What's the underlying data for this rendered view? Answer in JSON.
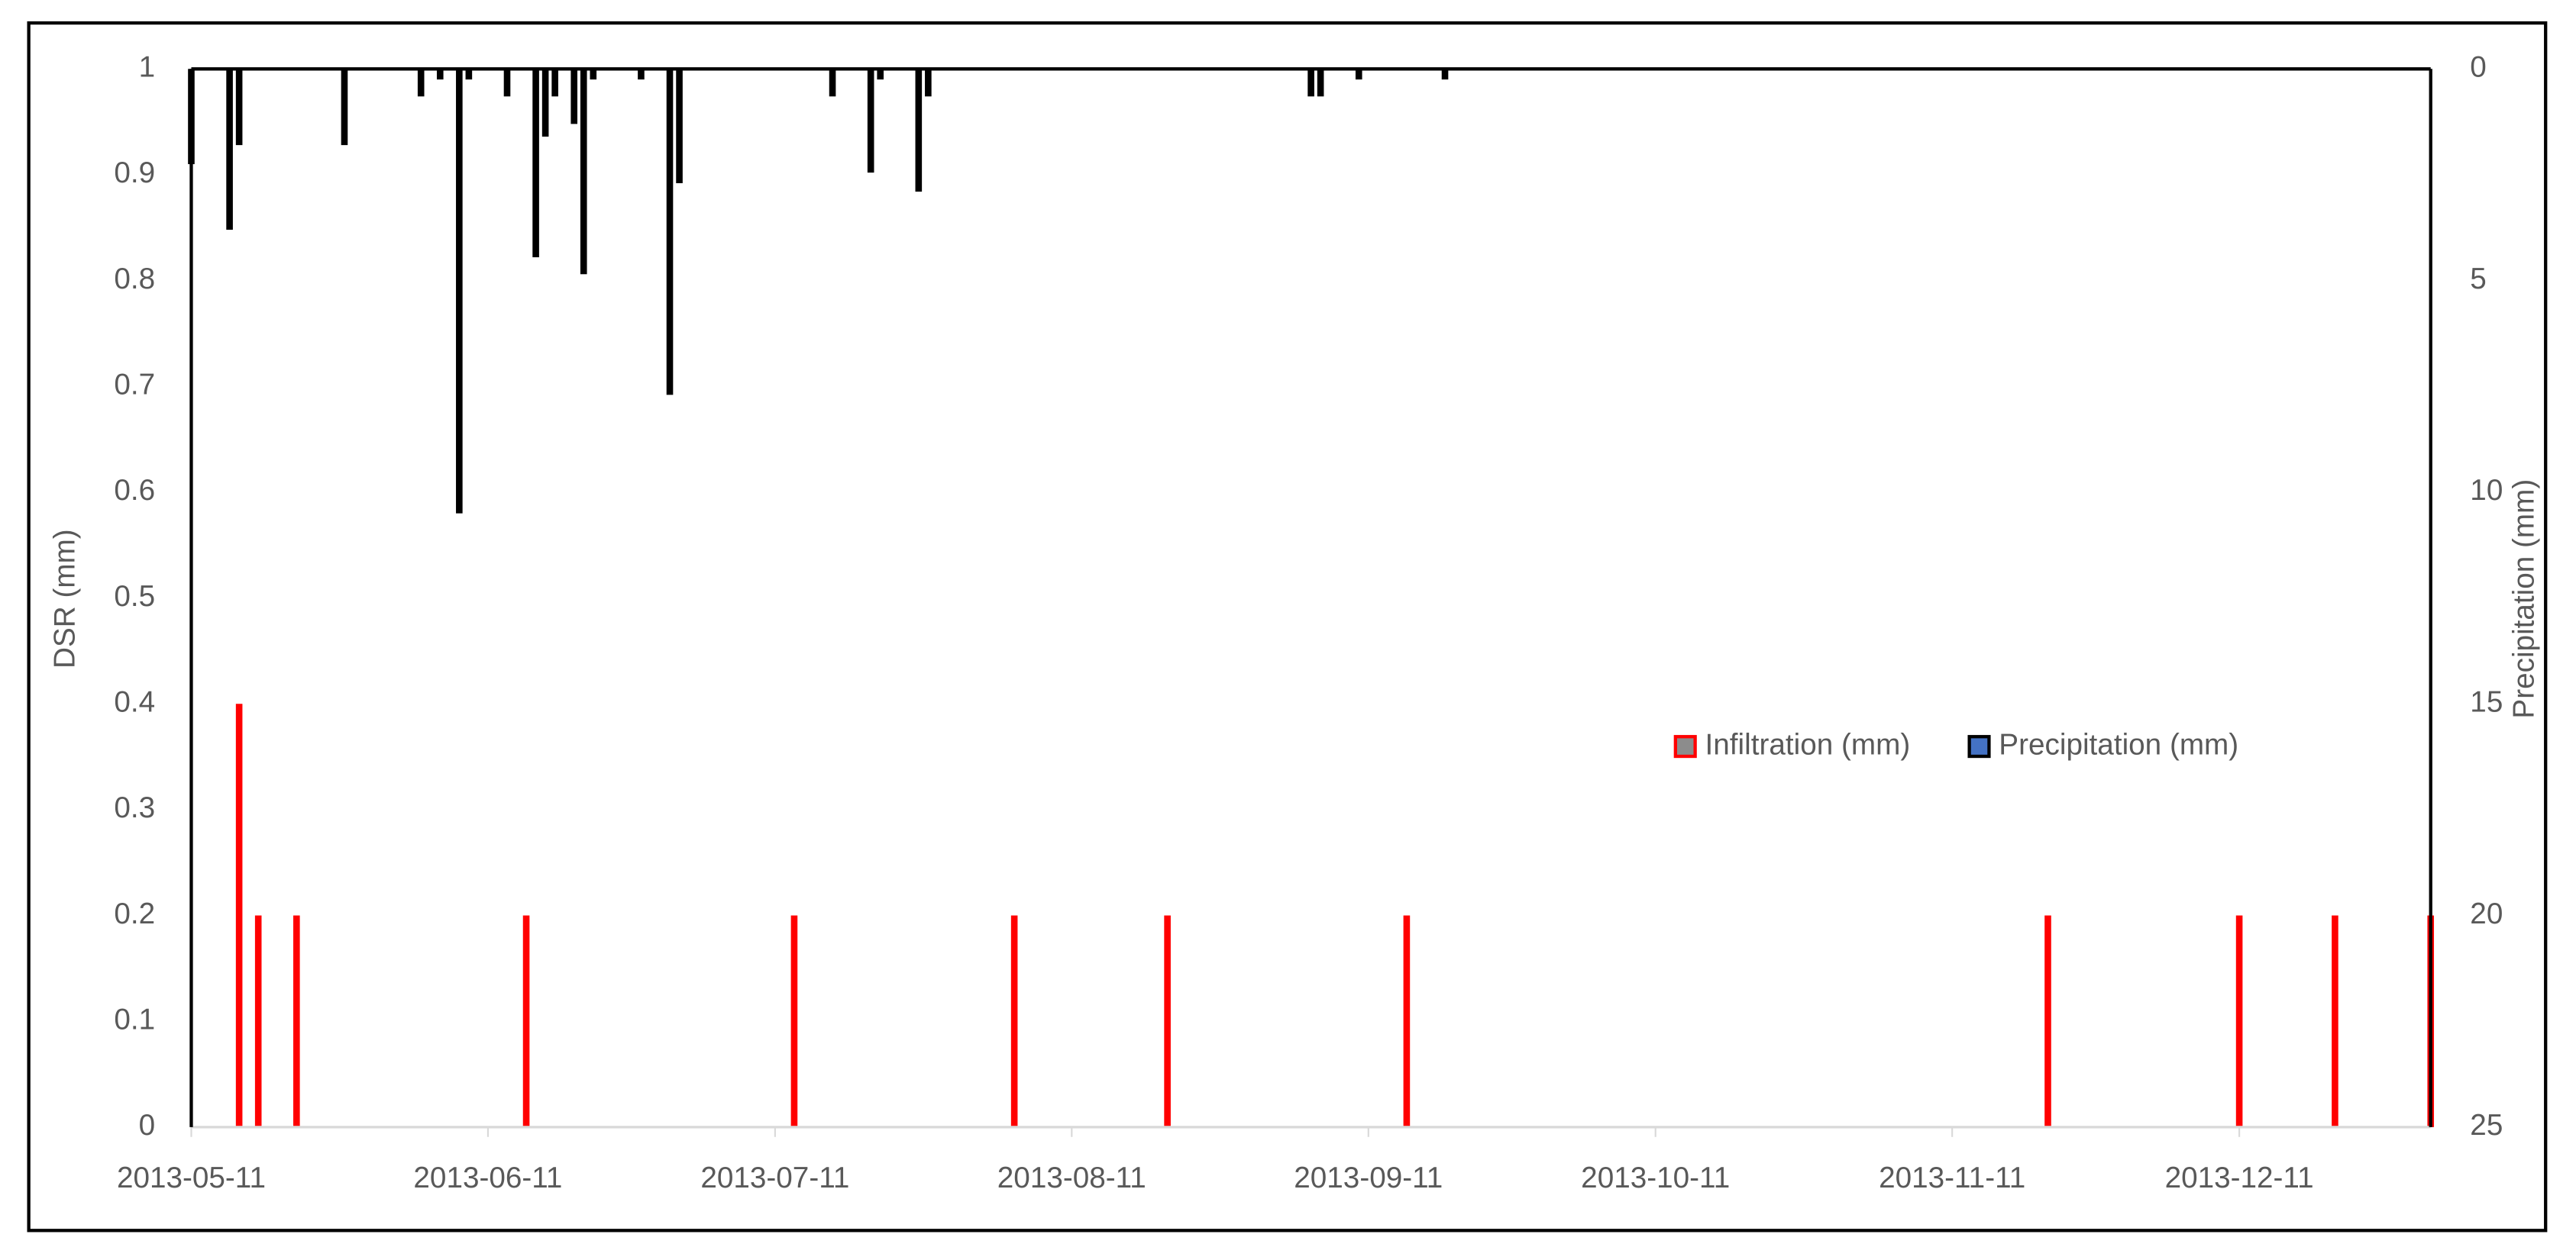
{
  "chart_data": {
    "type": "bar",
    "y_label": "DSR (mm)",
    "y2_label": "Precipitation (mm)",
    "xlim": [
      "2013-05-11",
      "2013-12-31"
    ],
    "xticks": [
      "2013-05-11",
      "2013-06-11",
      "2013-07-11",
      "2013-08-11",
      "2013-09-11",
      "2013-10-11",
      "2013-11-11",
      "2013-12-11"
    ],
    "ylim": [
      0,
      1
    ],
    "yticks": [
      0,
      0.1,
      0.2,
      0.3,
      0.4,
      0.5,
      0.6,
      0.7,
      0.8,
      0.9,
      1
    ],
    "y2lim": [
      25,
      0
    ],
    "y2ticks": [
      0,
      5,
      10,
      15,
      20,
      25
    ],
    "legend": "center-right",
    "series": [
      {
        "name": "Infiltration (mm)",
        "color": "#ff0000",
        "legend_color": "#8c8c8c",
        "x": [
          "2013-05-16",
          "2013-05-18",
          "2013-05-22",
          "2013-06-15",
          "2013-07-13",
          "2013-08-05",
          "2013-08-21",
          "2013-09-15",
          "2013-11-21",
          "2013-12-11",
          "2013-12-21",
          "2013-12-31"
        ],
        "values": [
          0.4,
          0.2,
          0.2,
          0.2,
          0.2,
          0.2,
          0.2,
          0.2,
          0.2,
          0.2,
          0.2,
          0.2
        ]
      },
      {
        "name": "Precipitation (mm)",
        "color": "#000000",
        "legend_color": "#4472c4",
        "axis": "y2",
        "x": [
          "2013-05-11",
          "2013-05-15",
          "2013-05-16",
          "2013-05-27",
          "2013-06-04",
          "2013-06-06",
          "2013-06-08",
          "2013-06-09",
          "2013-06-13",
          "2013-06-16",
          "2013-06-17",
          "2013-06-18",
          "2013-06-20",
          "2013-06-21",
          "2013-06-22",
          "2013-06-27",
          "2013-06-30",
          "2013-07-01",
          "2013-07-17",
          "2013-07-21",
          "2013-07-22",
          "2013-07-26",
          "2013-07-27",
          "2013-09-05",
          "2013-09-06",
          "2013-09-10",
          "2013-09-19"
        ],
        "values": [
          2.25,
          3.8,
          1.8,
          1.8,
          0.65,
          0.25,
          10.5,
          0.25,
          0.65,
          4.45,
          1.6,
          0.65,
          1.3,
          4.85,
          0.25,
          0.25,
          7.7,
          2.7,
          0.65,
          2.45,
          0.25,
          2.9,
          0.65,
          0.65,
          0.65,
          0.25,
          0.25
        ]
      }
    ]
  }
}
